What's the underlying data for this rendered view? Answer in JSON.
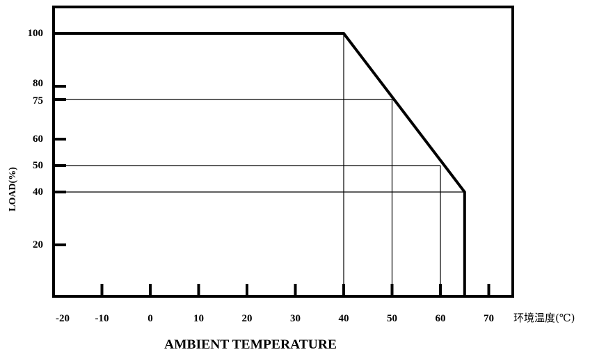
{
  "chart_data": {
    "type": "line",
    "title": "",
    "xlabel": "AMBIENT TEMPERATURE",
    "xunit_label": "环境温度(℃)",
    "ylabel": "LOAD(%)",
    "xlim": [
      -20,
      72
    ],
    "ylim": [
      0,
      105
    ],
    "x_ticks": [
      -20,
      -10,
      0,
      10,
      20,
      30,
      40,
      50,
      60,
      70
    ],
    "x_tick_labels": [
      "-20",
      "-10",
      "0",
      "10",
      "20",
      "30",
      "40",
      "50",
      "60",
      "70"
    ],
    "y_ticks": [
      20,
      40,
      50,
      60,
      75,
      80,
      100
    ],
    "y_tick_labels": [
      "20",
      "40",
      "50",
      "60",
      "75",
      "80",
      "100"
    ],
    "grid": false,
    "series": [
      {
        "x": [
          -20,
          40,
          65,
          65
        ],
        "y": [
          100,
          100,
          40,
          0
        ]
      }
    ],
    "reference_points": [
      {
        "x": 40,
        "y": 100
      },
      {
        "x": 50,
        "y": 75
      },
      {
        "x": 60,
        "y": 50
      },
      {
        "x": 65,
        "y": 40
      }
    ]
  }
}
